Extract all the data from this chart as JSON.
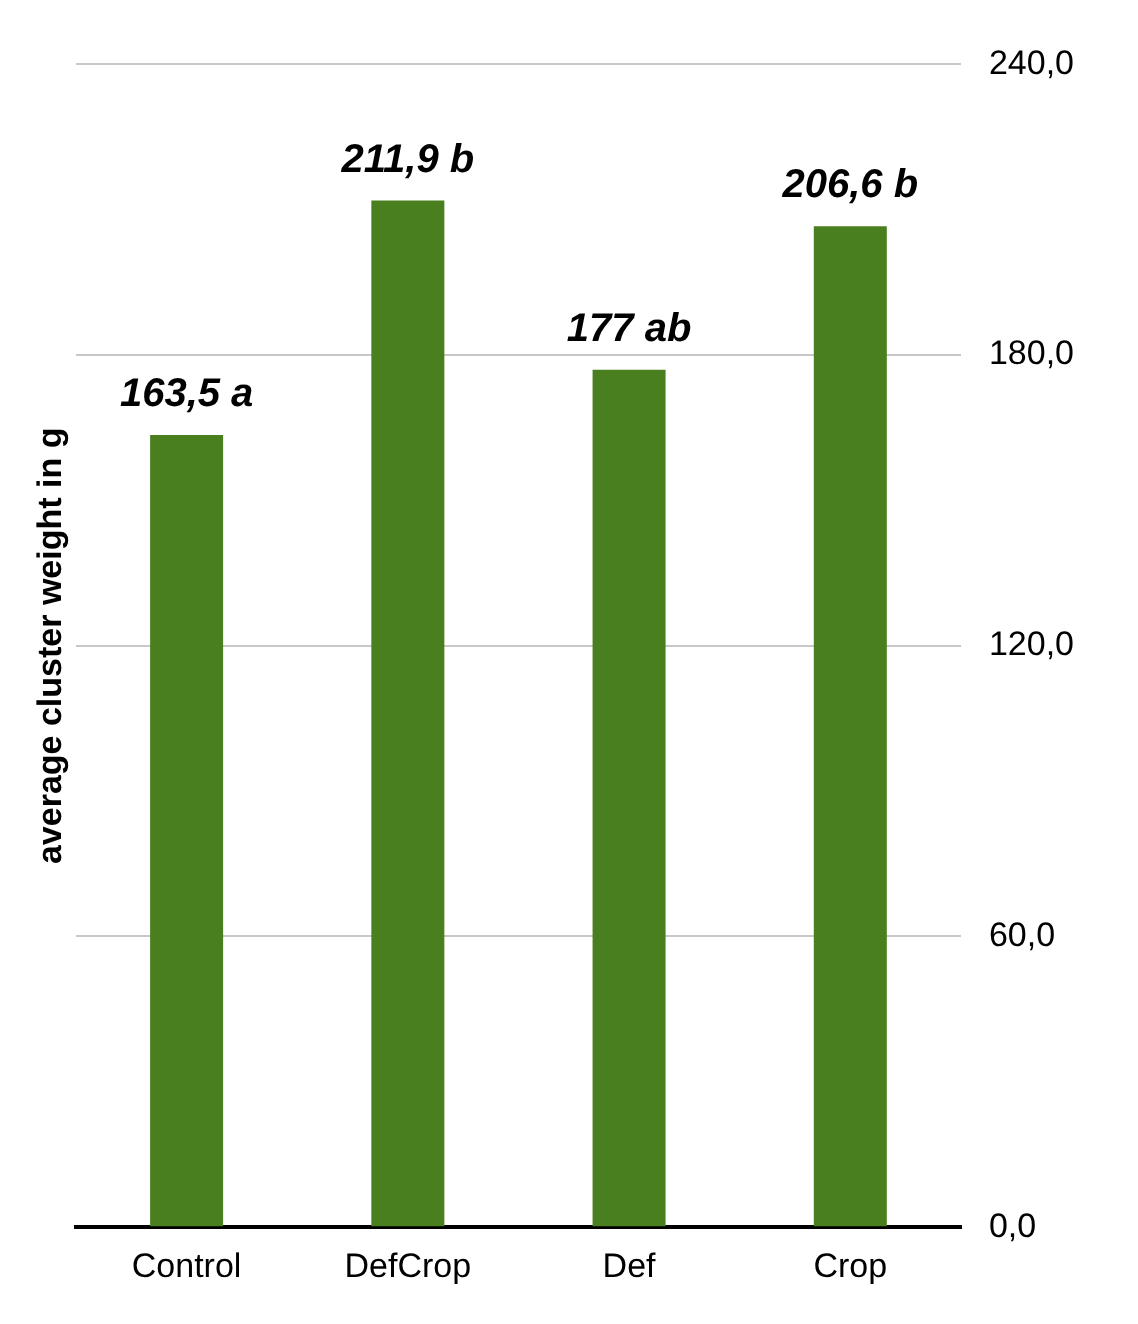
{
  "chart_data": {
    "type": "bar",
    "ylabel": "average cluster weight in g",
    "categories": [
      "Control",
      "DefCrop",
      "Def",
      "Crop"
    ],
    "values": [
      163.5,
      211.9,
      177,
      206.6
    ],
    "value_labels": [
      "163,5 a",
      "211,9 b",
      "177 ab",
      "206,6 b"
    ],
    "color": "#4a7f1f",
    "ylim": [
      0,
      240
    ],
    "yticks": [
      {
        "value": 0,
        "label": "0,0"
      },
      {
        "value": 60,
        "label": "60,0"
      },
      {
        "value": 120,
        "label": "120,0"
      },
      {
        "value": 180,
        "label": "180,0"
      },
      {
        "value": 240,
        "label": "240,0"
      }
    ],
    "grid": "y",
    "legend": false
  }
}
